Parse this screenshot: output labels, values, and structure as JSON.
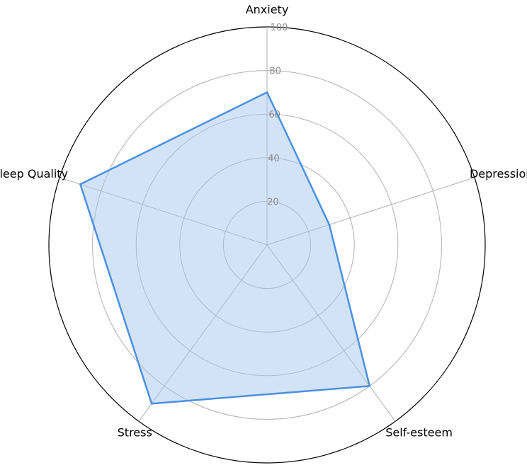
{
  "chart_data": {
    "type": "radar",
    "title": "",
    "axes": [
      "Anxiety",
      "Depression",
      "Self-esteem",
      "Stress",
      "Sleep Quality"
    ],
    "series": [
      {
        "values": [
          70,
          30,
          80,
          90,
          90
        ]
      }
    ],
    "rlim": [
      0,
      100
    ],
    "rticks": [
      20,
      40,
      60,
      80,
      100
    ],
    "rtick_labels": [
      "20",
      "40",
      "60",
      "80",
      "100"
    ],
    "grid": true,
    "legend": "none",
    "colors": {
      "line": "#4a90e2",
      "fill": "#a8c8f0",
      "grid": "#b0b0b0",
      "outer_ring": "#000000",
      "tick_label": "#8c8c8c"
    }
  }
}
